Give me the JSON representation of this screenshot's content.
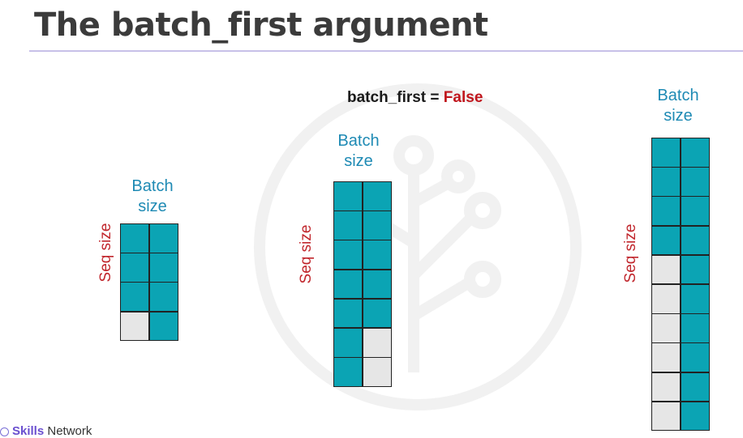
{
  "slide": {
    "title": "The batch_first argument",
    "parameter": {
      "name": "batch_first = ",
      "value": "False"
    }
  },
  "tensors": [
    {
      "batch_label": [
        "Batch",
        "size"
      ],
      "seq_label": "Seq size",
      "rows": [
        [
          1,
          1
        ],
        [
          1,
          1
        ],
        [
          1,
          1
        ],
        [
          0,
          1
        ]
      ]
    },
    {
      "batch_label": [
        "Batch",
        "size"
      ],
      "seq_label": "Seq size",
      "rows": [
        [
          1,
          1
        ],
        [
          1,
          1
        ],
        [
          1,
          1
        ],
        [
          1,
          1
        ],
        [
          1,
          1
        ],
        [
          1,
          0
        ],
        [
          1,
          0
        ]
      ]
    },
    {
      "batch_label": [
        "Batch",
        "size"
      ],
      "seq_label": "Seq size",
      "rows": [
        [
          1,
          1
        ],
        [
          1,
          1
        ],
        [
          1,
          1
        ],
        [
          1,
          1
        ],
        [
          0,
          1
        ],
        [
          0,
          1
        ],
        [
          0,
          1
        ],
        [
          0,
          1
        ],
        [
          0,
          1
        ],
        [
          0,
          1
        ]
      ]
    }
  ],
  "brand": {
    "part1": "Skills",
    "part2": " Network"
  },
  "colors": {
    "data": "#0ba4b4",
    "padding": "#e6e6e6",
    "batch_label": "#1e8ab4",
    "seq_label": "#c1272d",
    "highlight": "#c0151c"
  },
  "icons": {
    "watermark": "tree-logo-watermark-icon",
    "brand": "skills-network-logo-icon"
  }
}
